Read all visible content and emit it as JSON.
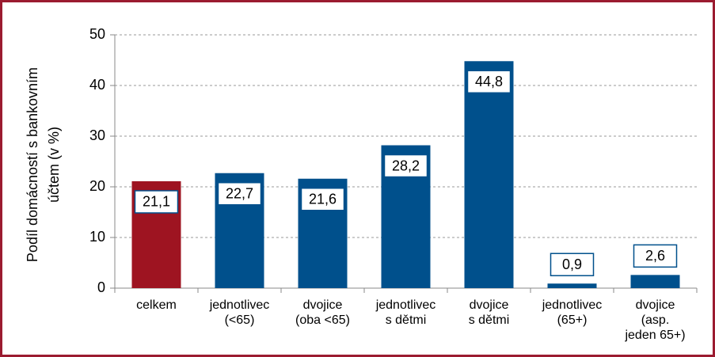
{
  "chart_data": {
    "type": "bar",
    "ylabel": "Podíl domácností s bankovním\núčtem (v %)",
    "categories": [
      "celkem",
      "jednotlivec\n(<65)",
      "dvojice\n(oba <65)",
      "jednotlivec\ns dětmi",
      "dvojice\ns dětmi",
      "jednotlivec\n(65+)",
      "dvojice\n(asp.\njeden 65+)"
    ],
    "values": [
      21.1,
      22.7,
      21.6,
      28.2,
      44.8,
      0.9,
      2.6
    ],
    "value_labels": [
      "21,1",
      "22,7",
      "21,6",
      "28,2",
      "44,8",
      "0,9",
      "2,6"
    ],
    "colors": [
      "#9e1421",
      "#00508c",
      "#00508c",
      "#00508c",
      "#00508c",
      "#00508c",
      "#00508c"
    ],
    "ylim": [
      0,
      50
    ],
    "yticks": [
      0,
      10,
      20,
      30,
      40,
      50
    ],
    "grid": true
  }
}
